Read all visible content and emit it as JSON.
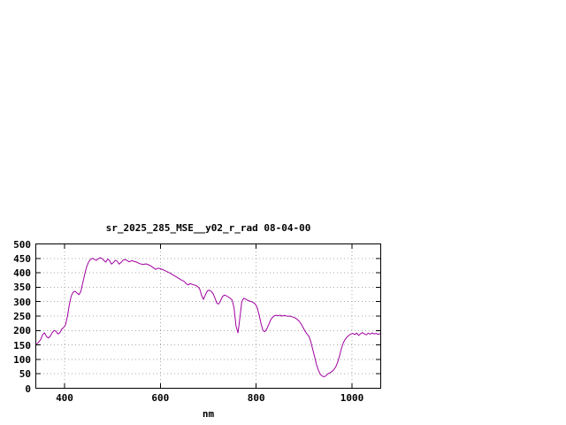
{
  "chart_data": {
    "type": "line",
    "title": "sr_2025_285_MSE__y02_r_rad 08-04-00",
    "xlabel": "nm",
    "ylabel": "",
    "xlim": [
      340,
      1060
    ],
    "ylim": [
      0,
      500
    ],
    "xticks": [
      400,
      600,
      800,
      1000
    ],
    "yticks": [
      0,
      50,
      100,
      150,
      200,
      250,
      300,
      350,
      400,
      450,
      500
    ],
    "grid": true,
    "legend": "none",
    "line_color": "#a000a0",
    "series": [
      {
        "name": "sr_2025_285_MSE__y02_r_rad",
        "points": [
          [
            341,
            152
          ],
          [
            345,
            158
          ],
          [
            350,
            168
          ],
          [
            354,
            185
          ],
          [
            358,
            192
          ],
          [
            362,
            180
          ],
          [
            366,
            174
          ],
          [
            370,
            180
          ],
          [
            374,
            192
          ],
          [
            378,
            200
          ],
          [
            382,
            198
          ],
          [
            386,
            188
          ],
          [
            390,
            192
          ],
          [
            394,
            205
          ],
          [
            398,
            210
          ],
          [
            402,
            220
          ],
          [
            406,
            250
          ],
          [
            410,
            290
          ],
          [
            414,
            320
          ],
          [
            418,
            333
          ],
          [
            422,
            336
          ],
          [
            426,
            330
          ],
          [
            430,
            324
          ],
          [
            434,
            335
          ],
          [
            438,
            365
          ],
          [
            442,
            395
          ],
          [
            446,
            420
          ],
          [
            450,
            437
          ],
          [
            454,
            446
          ],
          [
            458,
            450
          ],
          [
            462,
            447
          ],
          [
            466,
            443
          ],
          [
            470,
            448
          ],
          [
            474,
            452
          ],
          [
            478,
            450
          ],
          [
            482,
            443
          ],
          [
            486,
            437
          ],
          [
            490,
            448
          ],
          [
            494,
            442
          ],
          [
            498,
            430
          ],
          [
            502,
            436
          ],
          [
            506,
            443
          ],
          [
            510,
            440
          ],
          [
            514,
            430
          ],
          [
            518,
            436
          ],
          [
            522,
            444
          ],
          [
            526,
            446
          ],
          [
            530,
            443
          ],
          [
            535,
            438
          ],
          [
            540,
            442
          ],
          [
            545,
            440
          ],
          [
            550,
            437
          ],
          [
            555,
            433
          ],
          [
            560,
            430
          ],
          [
            565,
            429
          ],
          [
            570,
            431
          ],
          [
            575,
            428
          ],
          [
            580,
            424
          ],
          [
            585,
            418
          ],
          [
            590,
            412
          ],
          [
            595,
            416
          ],
          [
            600,
            414
          ],
          [
            605,
            411
          ],
          [
            610,
            407
          ],
          [
            615,
            403
          ],
          [
            620,
            399
          ],
          [
            625,
            394
          ],
          [
            630,
            389
          ],
          [
            635,
            384
          ],
          [
            640,
            379
          ],
          [
            645,
            374
          ],
          [
            650,
            370
          ],
          [
            654,
            362
          ],
          [
            658,
            358
          ],
          [
            662,
            363
          ],
          [
            666,
            360
          ],
          [
            670,
            358
          ],
          [
            674,
            356
          ],
          [
            678,
            352
          ],
          [
            682,
            344
          ],
          [
            686,
            322
          ],
          [
            690,
            308
          ],
          [
            694,
            324
          ],
          [
            698,
            337
          ],
          [
            702,
            340
          ],
          [
            706,
            336
          ],
          [
            710,
            328
          ],
          [
            714,
            312
          ],
          [
            718,
            294
          ],
          [
            722,
            292
          ],
          [
            726,
            305
          ],
          [
            730,
            318
          ],
          [
            734,
            323
          ],
          [
            738,
            320
          ],
          [
            742,
            316
          ],
          [
            746,
            312
          ],
          [
            750,
            305
          ],
          [
            754,
            278
          ],
          [
            758,
            215
          ],
          [
            762,
            192
          ],
          [
            766,
            245
          ],
          [
            770,
            300
          ],
          [
            774,
            312
          ],
          [
            778,
            309
          ],
          [
            782,
            305
          ],
          [
            786,
            302
          ],
          [
            790,
            300
          ],
          [
            794,
            297
          ],
          [
            798,
            292
          ],
          [
            802,
            280
          ],
          [
            806,
            255
          ],
          [
            810,
            225
          ],
          [
            814,
            200
          ],
          [
            818,
            196
          ],
          [
            822,
            205
          ],
          [
            826,
            220
          ],
          [
            830,
            236
          ],
          [
            834,
            246
          ],
          [
            838,
            251
          ],
          [
            842,
            253
          ],
          [
            846,
            251
          ],
          [
            850,
            253
          ],
          [
            854,
            250
          ],
          [
            858,
            252
          ],
          [
            862,
            251
          ],
          [
            866,
            249
          ],
          [
            870,
            250
          ],
          [
            874,
            248
          ],
          [
            878,
            246
          ],
          [
            882,
            243
          ],
          [
            886,
            238
          ],
          [
            890,
            232
          ],
          [
            894,
            222
          ],
          [
            898,
            210
          ],
          [
            902,
            198
          ],
          [
            906,
            188
          ],
          [
            910,
            180
          ],
          [
            914,
            162
          ],
          [
            918,
            135
          ],
          [
            922,
            108
          ],
          [
            926,
            82
          ],
          [
            930,
            62
          ],
          [
            934,
            48
          ],
          [
            938,
            42
          ],
          [
            942,
            40
          ],
          [
            946,
            44
          ],
          [
            950,
            50
          ],
          [
            954,
            54
          ],
          [
            958,
            58
          ],
          [
            962,
            64
          ],
          [
            966,
            74
          ],
          [
            970,
            90
          ],
          [
            974,
            112
          ],
          [
            978,
            138
          ],
          [
            982,
            158
          ],
          [
            986,
            170
          ],
          [
            990,
            178
          ],
          [
            994,
            184
          ],
          [
            998,
            188
          ],
          [
            1002,
            190
          ],
          [
            1006,
            186
          ],
          [
            1010,
            191
          ],
          [
            1014,
            183
          ],
          [
            1018,
            189
          ],
          [
            1022,
            193
          ],
          [
            1026,
            188
          ],
          [
            1030,
            185
          ],
          [
            1034,
            191
          ],
          [
            1038,
            187
          ],
          [
            1042,
            192
          ],
          [
            1046,
            188
          ],
          [
            1050,
            190
          ],
          [
            1055,
            187
          ],
          [
            1059,
            189
          ]
        ]
      }
    ]
  }
}
